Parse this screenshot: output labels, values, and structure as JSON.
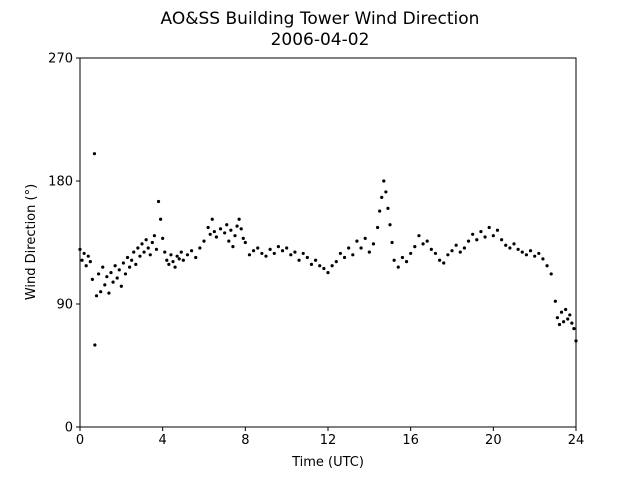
{
  "chart_data": {
    "type": "scatter",
    "title": "AO&SS Building Tower Wind Direction",
    "subtitle": "2006-04-02",
    "x_label": "Time (UTC)",
    "y_label": "Wind Direction (°)",
    "color": "#000000",
    "xlim": [
      0,
      24
    ],
    "xticks": [
      0,
      4,
      8,
      12,
      16,
      20,
      24
    ],
    "ylim": [
      0,
      270
    ],
    "yticks": [
      0,
      90,
      180,
      270
    ],
    "grid": false,
    "x": [
      0.0,
      0.1,
      0.2,
      0.3,
      0.4,
      0.5,
      0.6,
      0.7,
      0.72,
      0.8,
      0.9,
      1.0,
      1.1,
      1.2,
      1.3,
      1.4,
      1.5,
      1.6,
      1.7,
      1.8,
      1.9,
      2.0,
      2.1,
      2.2,
      2.3,
      2.4,
      2.5,
      2.6,
      2.7,
      2.8,
      2.9,
      3.0,
      3.1,
      3.2,
      3.3,
      3.4,
      3.5,
      3.6,
      3.7,
      3.8,
      3.9,
      4.0,
      4.1,
      4.2,
      4.3,
      4.4,
      4.5,
      4.6,
      4.7,
      4.8,
      4.9,
      5.0,
      5.2,
      5.4,
      5.6,
      5.8,
      6.0,
      6.2,
      6.3,
      6.4,
      6.5,
      6.6,
      6.8,
      7.0,
      7.1,
      7.2,
      7.3,
      7.4,
      7.5,
      7.6,
      7.7,
      7.8,
      7.9,
      8.0,
      8.2,
      8.4,
      8.6,
      8.8,
      9.0,
      9.2,
      9.4,
      9.6,
      9.8,
      10.0,
      10.2,
      10.4,
      10.6,
      10.8,
      11.0,
      11.2,
      11.4,
      11.6,
      11.8,
      12.0,
      12.2,
      12.4,
      12.6,
      12.8,
      13.0,
      13.2,
      13.4,
      13.6,
      13.8,
      14.0,
      14.2,
      14.4,
      14.5,
      14.6,
      14.7,
      14.8,
      14.9,
      15.0,
      15.1,
      15.2,
      15.4,
      15.6,
      15.8,
      16.0,
      16.2,
      16.4,
      16.6,
      16.8,
      17.0,
      17.2,
      17.4,
      17.6,
      17.8,
      18.0,
      18.2,
      18.4,
      18.6,
      18.8,
      19.0,
      19.2,
      19.4,
      19.6,
      19.8,
      20.0,
      20.2,
      20.4,
      20.6,
      20.8,
      21.0,
      21.2,
      21.4,
      21.6,
      21.8,
      22.0,
      22.2,
      22.4,
      22.6,
      22.8,
      23.0,
      23.1,
      23.2,
      23.3,
      23.4,
      23.5,
      23.6,
      23.7,
      23.8,
      23.9,
      24.0
    ],
    "values": [
      130,
      122,
      127,
      118,
      125,
      121,
      108,
      200,
      60,
      96,
      112,
      99,
      117,
      104,
      110,
      98,
      113,
      106,
      118,
      109,
      115,
      103,
      120,
      112,
      124,
      117,
      122,
      128,
      119,
      131,
      125,
      134,
      128,
      137,
      131,
      126,
      135,
      140,
      130,
      165,
      152,
      138,
      128,
      122,
      119,
      126,
      121,
      117,
      125,
      123,
      128,
      122,
      126,
      129,
      124,
      131,
      136,
      146,
      141,
      152,
      143,
      139,
      145,
      142,
      148,
      136,
      144,
      132,
      140,
      147,
      152,
      145,
      138,
      135,
      126,
      129,
      131,
      127,
      125,
      130,
      127,
      132,
      129,
      131,
      126,
      128,
      122,
      127,
      124,
      119,
      122,
      118,
      116,
      113,
      118,
      121,
      127,
      124,
      131,
      126,
      136,
      131,
      138,
      128,
      134,
      146,
      158,
      168,
      180,
      172,
      160,
      148,
      135,
      122,
      117,
      124,
      121,
      127,
      132,
      140,
      134,
      136,
      130,
      127,
      122,
      120,
      126,
      129,
      133,
      128,
      131,
      136,
      141,
      137,
      143,
      139,
      146,
      140,
      144,
      137,
      133,
      131,
      134,
      130,
      128,
      126,
      129,
      125,
      127,
      123,
      118,
      112,
      92,
      80,
      75,
      84,
      77,
      86,
      79,
      82,
      76,
      72,
      63
    ]
  }
}
